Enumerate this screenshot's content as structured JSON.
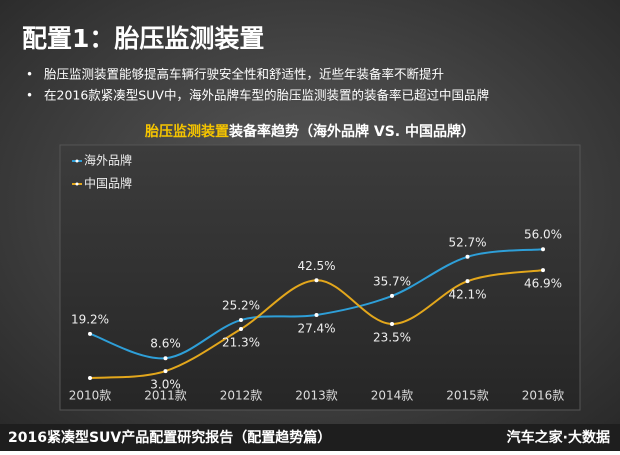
{
  "header": {
    "title": "配置1：胎压监测装置",
    "bullets": [
      "胎压监测装置能够提高车辆行驶安全性和舒适性，近些年装备率不断提升",
      "在2016款紧凑型SUV中，海外品牌车型的胎压监测装置的装备率已超过中国品牌"
    ]
  },
  "chart_data": {
    "type": "line",
    "title_highlight": "胎压监测装置",
    "title": "装备率趋势（海外品牌 VS. 中国品牌）",
    "categories": [
      "2010款",
      "2011款",
      "2012款",
      "2013款",
      "2014款",
      "2015款",
      "2016款"
    ],
    "ylim": [
      0,
      80
    ],
    "legend": "top-left",
    "series": [
      {
        "name": "海外品牌",
        "color": "#2e9fd8",
        "values": [
          19.2,
          8.6,
          25.2,
          27.4,
          35.7,
          52.7,
          56.0
        ],
        "value_labels": [
          "19.2%",
          "8.6%",
          "25.2%",
          "27.4%",
          "35.7%",
          "52.7%",
          "56.0%"
        ]
      },
      {
        "name": "中国品牌",
        "color": "#e3a71c",
        "values": [
          0,
          3.0,
          21.3,
          42.5,
          23.5,
          42.1,
          46.9
        ],
        "value_labels": [
          null,
          "3.0%",
          "21.3%",
          "42.5%",
          "23.5%",
          "42.1%",
          "46.9%"
        ]
      }
    ]
  },
  "footer": {
    "left": "2016紧凑型SUV产品配置研究报告（配置趋势篇）",
    "right": "汽车之家·大数据"
  }
}
